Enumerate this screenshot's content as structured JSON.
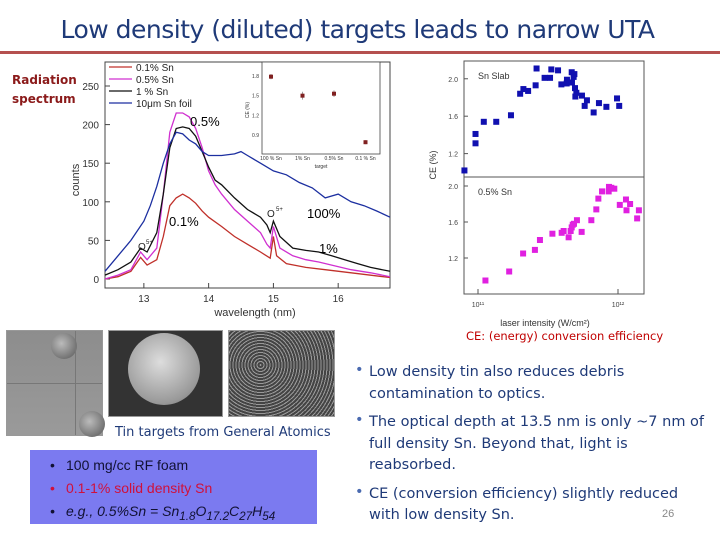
{
  "title": "Low density (diluted) targets leads to narrow UTA",
  "side_label": [
    "Radiation",
    "spectrum"
  ],
  "colors": {
    "title": "#1f3a78",
    "rule": "#b5504f",
    "red_text": "#c00000",
    "box": "#7b7af0"
  },
  "chart_data": [
    {
      "type": "line",
      "xlabel": "wavelength (nm)",
      "ylabel": "counts",
      "xlim": [
        12.4,
        16.8
      ],
      "ylim": [
        0,
        270
      ],
      "xticks": [
        13,
        14,
        15,
        16
      ],
      "yticks": [
        0,
        50,
        100,
        150,
        200,
        250
      ],
      "legend_position": "top-left",
      "series": [
        {
          "name": "0.1% Sn",
          "color": "#c0302a",
          "points": [
            [
              12.4,
              0
            ],
            [
              12.6,
              3
            ],
            [
              12.8,
              10
            ],
            [
              12.95,
              28
            ],
            [
              13.05,
              18
            ],
            [
              13.2,
              25
            ],
            [
              13.3,
              55
            ],
            [
              13.4,
              95
            ],
            [
              13.5,
              105
            ],
            [
              13.6,
              110
            ],
            [
              13.7,
              105
            ],
            [
              13.8,
              98
            ],
            [
              13.9,
              88
            ],
            [
              14.0,
              80
            ],
            [
              14.2,
              68
            ],
            [
              14.4,
              55
            ],
            [
              14.6,
              45
            ],
            [
              14.8,
              35
            ],
            [
              14.95,
              27
            ],
            [
              15.0,
              55
            ],
            [
              15.05,
              30
            ],
            [
              15.2,
              20
            ],
            [
              15.5,
              15
            ],
            [
              15.8,
              12
            ],
            [
              16.2,
              8
            ],
            [
              16.8,
              2
            ]
          ]
        },
        {
          "name": "0.5% Sn",
          "color": "#d030d0",
          "points": [
            [
              12.4,
              0
            ],
            [
              12.6,
              5
            ],
            [
              12.8,
              12
            ],
            [
              12.95,
              35
            ],
            [
              13.05,
              25
            ],
            [
              13.2,
              40
            ],
            [
              13.3,
              110
            ],
            [
              13.4,
              190
            ],
            [
              13.5,
              215
            ],
            [
              13.6,
              215
            ],
            [
              13.7,
              210
            ],
            [
              13.8,
              195
            ],
            [
              13.9,
              170
            ],
            [
              14.0,
              140
            ],
            [
              14.1,
              122
            ],
            [
              14.2,
              110
            ],
            [
              14.4,
              90
            ],
            [
              14.6,
              75
            ],
            [
              14.8,
              60
            ],
            [
              14.9,
              45
            ],
            [
              14.95,
              40
            ],
            [
              15.0,
              68
            ],
            [
              15.1,
              40
            ],
            [
              15.3,
              30
            ],
            [
              15.5,
              25
            ],
            [
              15.7,
              22
            ],
            [
              15.9,
              18
            ],
            [
              16.2,
              12
            ],
            [
              16.5,
              8
            ],
            [
              16.8,
              3
            ]
          ]
        },
        {
          "name": "1 % Sn",
          "color": "#111111",
          "points": [
            [
              12.4,
              5
            ],
            [
              12.6,
              12
            ],
            [
              12.8,
              22
            ],
            [
              12.95,
              40
            ],
            [
              13.05,
              35
            ],
            [
              13.2,
              60
            ],
            [
              13.3,
              110
            ],
            [
              13.4,
              170
            ],
            [
              13.5,
              195
            ],
            [
              13.6,
              197
            ],
            [
              13.7,
              195
            ],
            [
              13.8,
              185
            ],
            [
              13.9,
              165
            ],
            [
              14.0,
              145
            ],
            [
              14.1,
              128
            ],
            [
              14.2,
              122
            ],
            [
              14.4,
              105
            ],
            [
              14.6,
              90
            ],
            [
              14.8,
              80
            ],
            [
              14.9,
              70
            ],
            [
              14.95,
              60
            ],
            [
              15.0,
              75
            ],
            [
              15.1,
              55
            ],
            [
              15.3,
              40
            ],
            [
              15.5,
              37
            ],
            [
              15.7,
              35
            ],
            [
              15.9,
              30
            ],
            [
              16.1,
              25
            ],
            [
              16.3,
              20
            ],
            [
              16.5,
              15
            ],
            [
              16.8,
              10
            ]
          ]
        },
        {
          "name": "10μm Sn foil",
          "color": "#1c2fa0",
          "points": [
            [
              12.4,
              10
            ],
            [
              12.6,
              30
            ],
            [
              12.8,
              50
            ],
            [
              13.0,
              75
            ],
            [
              13.1,
              95
            ],
            [
              13.2,
              120
            ],
            [
              13.3,
              150
            ],
            [
              13.4,
              175
            ],
            [
              13.5,
              190
            ],
            [
              13.6,
              188
            ],
            [
              13.7,
              180
            ],
            [
              13.8,
              175
            ],
            [
              13.9,
              165
            ],
            [
              14.0,
              160
            ],
            [
              14.2,
              160
            ],
            [
              14.4,
              162
            ],
            [
              14.5,
              165
            ],
            [
              14.6,
              160
            ],
            [
              14.8,
              150
            ],
            [
              15.0,
              140
            ],
            [
              15.2,
              135
            ],
            [
              15.4,
              125
            ],
            [
              15.6,
              118
            ],
            [
              15.8,
              105
            ],
            [
              16.0,
              110
            ],
            [
              16.2,
              100
            ],
            [
              16.4,
              95
            ],
            [
              16.6,
              88
            ],
            [
              16.8,
              80
            ]
          ]
        }
      ],
      "annotations": [
        "0.5%",
        "0.1%",
        "100%",
        "1%",
        "O",
        "5+",
        "O",
        "5+"
      ]
    },
    {
      "type": "scatter",
      "title": "inset",
      "xlabel": "target",
      "ylabel": "CE (%)",
      "categories": [
        "100 % Sn",
        "1% Sn",
        "0.5% Sn",
        "0.1 % Sn"
      ],
      "values": [
        1.79,
        1.5,
        1.53,
        0.79
      ],
      "errors": [
        0.04,
        0.06,
        0.05,
        0.03
      ],
      "yticks": [
        "0.9",
        "1.2",
        "1.5",
        "1.8"
      ],
      "ylim": [
        0.7,
        1.95
      ]
    },
    {
      "type": "scatter",
      "xlabel": "laser intensity (W/cm²)",
      "ylabel": "CE (%)",
      "x_scale": "log",
      "x_units_note": "x values in units of 1e11 W/cm²",
      "xticks": [
        "10¹¹",
        "10¹²"
      ],
      "panels": [
        {
          "name": "Sn Slab",
          "color": "#1010b0",
          "ylim": [
            0.95,
            2.19
          ],
          "yticks": [
            "1.2",
            "1.6",
            "2.0"
          ],
          "points": [
            [
              0.8,
              1.02
            ],
            [
              0.96,
              1.41
            ],
            [
              0.96,
              1.31
            ],
            [
              1.1,
              1.54
            ],
            [
              1.35,
              1.54
            ],
            [
              1.72,
              1.61
            ],
            [
              2.0,
              1.84
            ],
            [
              2.11,
              1.89
            ],
            [
              2.28,
              1.87
            ],
            [
              2.58,
              1.93
            ],
            [
              2.62,
              2.11
            ],
            [
              2.99,
              2.01
            ],
            [
              3.27,
              2.01
            ],
            [
              3.34,
              2.1
            ],
            [
              3.73,
              2.09
            ],
            [
              3.94,
              1.94
            ],
            [
              4.3,
              1.95
            ],
            [
              4.32,
              1.99
            ],
            [
              4.67,
              2.07
            ],
            [
              4.69,
              1.96
            ],
            [
              4.82,
              2.02
            ],
            [
              4.88,
              2.05
            ],
            [
              4.93,
              1.9
            ],
            [
              4.96,
              1.81
            ],
            [
              5.04,
              1.85
            ],
            [
              5.53,
              1.82
            ],
            [
              5.78,
              1.71
            ],
            [
              6.0,
              1.77
            ],
            [
              6.7,
              1.64
            ],
            [
              7.31,
              1.74
            ],
            [
              8.26,
              1.7
            ],
            [
              9.84,
              1.79
            ],
            [
              10.2,
              1.71
            ]
          ]
        },
        {
          "name": "0.5% Sn",
          "color": "#e020e0",
          "ylim": [
            0.8,
            2.1
          ],
          "yticks": [
            "1.2",
            "1.6",
            "2.0"
          ],
          "points": [
            [
              1.13,
              0.95
            ],
            [
              1.67,
              1.05
            ],
            [
              2.1,
              1.25
            ],
            [
              2.55,
              1.29
            ],
            [
              2.77,
              1.4
            ],
            [
              3.4,
              1.47
            ],
            [
              3.96,
              1.48
            ],
            [
              4.09,
              1.5
            ],
            [
              4.44,
              1.43
            ],
            [
              4.59,
              1.5
            ],
            [
              4.67,
              1.54
            ],
            [
              4.75,
              1.57
            ],
            [
              4.85,
              1.58
            ],
            [
              5.09,
              1.62
            ],
            [
              5.5,
              1.49
            ],
            [
              6.45,
              1.62
            ],
            [
              7.0,
              1.74
            ],
            [
              7.24,
              1.86
            ],
            [
              7.69,
              1.94
            ],
            [
              8.58,
              1.94
            ],
            [
              8.62,
              1.99
            ],
            [
              8.96,
              1.98
            ],
            [
              9.41,
              1.97
            ],
            [
              10.3,
              1.79
            ],
            [
              11.4,
              1.85
            ],
            [
              11.5,
              1.73
            ],
            [
              12.2,
              1.8
            ],
            [
              13.7,
              1.64
            ],
            [
              14.1,
              1.73
            ]
          ]
        }
      ]
    }
  ],
  "ce_caption": "CE: (energy) conversion efficiency",
  "photos_caption": "Tin targets from General Atomics",
  "box_items": [
    {
      "text": "100 mg/cc RF foam",
      "color": "#111133"
    },
    {
      "text": "0.1-1% solid density Sn",
      "color": "#d0103a"
    },
    {
      "text_prefix": "e.g., 0.5%Sn = Sn",
      "sub1": "1.8",
      "o": "O",
      "sub2": "17.2",
      "c": "C",
      "sub3": "27",
      "h": "H",
      "sub4": "54"
    }
  ],
  "bullets": [
    "Low density tin also reduces debris contamination to optics.",
    "The optical depth at 13.5 nm is only ~7 nm of full density Sn. Beyond that, light is reabsorbed.",
    "CE (conversion efficiency) slightly reduced with low density Sn."
  ],
  "page_number": "26"
}
